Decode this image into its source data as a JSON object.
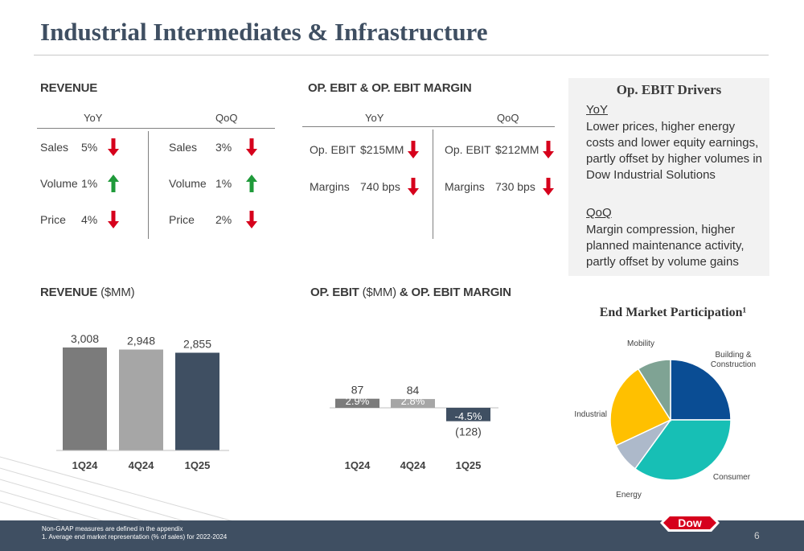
{
  "page": {
    "title": "Industrial Intermediates & Infrastructure",
    "page_number": "6"
  },
  "revenue_summary": {
    "heading": "REVENUE",
    "yoy_label": "YoY",
    "qoq_label": "QoQ",
    "yoy": [
      {
        "label": "Sales",
        "value": "5%",
        "direction": "down"
      },
      {
        "label": "Volume",
        "value": "1%",
        "direction": "up"
      },
      {
        "label": "Price",
        "value": "4%",
        "direction": "down"
      }
    ],
    "qoq": [
      {
        "label": "Sales",
        "value": "3%",
        "direction": "down"
      },
      {
        "label": "Volume",
        "value": "1%",
        "direction": "up"
      },
      {
        "label": "Price",
        "value": "2%",
        "direction": "down"
      }
    ]
  },
  "ebit_summary": {
    "heading": "OP. EBIT & OP. EBIT MARGIN",
    "yoy_label": "YoY",
    "qoq_label": "QoQ",
    "yoy": [
      {
        "label": "Op. EBIT",
        "value": "$215MM",
        "direction": "down"
      },
      {
        "label": "Margins",
        "value": "740 bps",
        "direction": "down"
      }
    ],
    "qoq": [
      {
        "label": "Op. EBIT",
        "value": "$212MM",
        "direction": "down"
      },
      {
        "label": "Margins",
        "value": "730 bps",
        "direction": "down"
      }
    ]
  },
  "drivers": {
    "title": "Op. EBIT Drivers",
    "yoy_label": "YoY",
    "yoy_text": "Lower prices, higher energy costs and lower equity earnings, partly offset by higher volumes in Dow Industrial Solutions",
    "qoq_label": "QoQ",
    "qoq_text": "Margin compression, higher planned maintenance activity, partly offset by volume gains"
  },
  "revenue_chart_heading": {
    "main": "REVENUE",
    "sub": " ($MM)"
  },
  "ebit_chart_heading": {
    "main1": "OP. EBIT",
    "sub": " ($MM) ",
    "main2": "& OP. EBIT MARGIN"
  },
  "pie_title": "End Market Participation¹",
  "colors": {
    "title": "#3f4f62",
    "arrow_down": "#d6001c",
    "arrow_up": "#1f9a3a",
    "bar_1q24": "#7b7b7b",
    "bar_4q24": "#a6a6a6",
    "bar_1q25": "#3f4f62",
    "pie_building": "#0a4d94",
    "pie_consumer": "#17bfb5",
    "pie_energy": "#adb9ca",
    "pie_industrial": "#ffc000",
    "pie_mobility": "#7fa394",
    "logo_red": "#d6001c"
  },
  "footnotes": {
    "line1": "Non-GAAP measures are defined in the appendix",
    "line2": "1. Average end market representation (% of sales) for 2022-2024"
  },
  "logo_text": "Dow",
  "chart_data": [
    {
      "type": "bar",
      "title": "REVENUE ($MM)",
      "categories": [
        "1Q24",
        "4Q24",
        "1Q25"
      ],
      "values": [
        3008,
        2948,
        2855
      ],
      "value_labels": [
        "3,008",
        "2,948",
        "2,855"
      ]
    },
    {
      "type": "bar",
      "title": "OP. EBIT ($MM) & OP. EBIT MARGIN",
      "categories": [
        "1Q24",
        "4Q24",
        "1Q25"
      ],
      "values": [
        87,
        84,
        -128
      ],
      "value_labels": [
        "87",
        "84",
        "(128)"
      ],
      "margins": [
        "2.9%",
        "2.8%",
        "-4.5%"
      ]
    },
    {
      "type": "pie",
      "title": "End Market Participation¹",
      "labels": [
        "Building & Construction",
        "Consumer",
        "Energy",
        "Industrial",
        "Mobility"
      ],
      "label_lines": [
        [
          "Building &",
          "Construction"
        ],
        [
          "Consumer"
        ],
        [
          "Energy"
        ],
        [
          "Industrial"
        ],
        [
          "Mobility"
        ]
      ],
      "values": [
        0.25,
        0.35,
        0.08,
        0.23,
        0.09
      ]
    }
  ]
}
